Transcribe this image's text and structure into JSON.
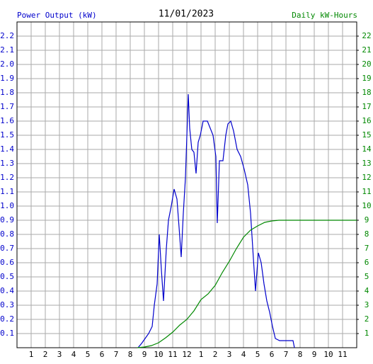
{
  "chart_data": {
    "type": "line",
    "title": "11/01/2023",
    "y_label": "Power Output (kW)",
    "y2_label": "Daily kW-Hours",
    "xlim": [
      0,
      24
    ],
    "xticks": [
      1,
      2,
      3,
      4,
      5,
      6,
      7,
      8,
      9,
      10,
      11,
      12,
      {
        "value": 13,
        "label": "1"
      },
      {
        "value": 14,
        "label": "2"
      },
      {
        "value": 15,
        "label": "3"
      },
      {
        "value": 16,
        "label": "4"
      },
      {
        "value": 17,
        "label": "5"
      },
      {
        "value": 18,
        "label": "6"
      },
      {
        "value": 19,
        "label": "7"
      },
      {
        "value": 20,
        "label": "8"
      },
      {
        "value": 21,
        "label": "9"
      },
      {
        "value": 22,
        "label": "10"
      },
      {
        "value": 23,
        "label": "11"
      }
    ],
    "ylim": [
      0,
      2.3
    ],
    "yticks": [
      0.1,
      0.2,
      0.3,
      0.4,
      0.5,
      0.6,
      0.7,
      0.8,
      0.9,
      {
        "value": 1,
        "label": "1.0"
      },
      1.1,
      1.2,
      1.3,
      1.4,
      1.5,
      1.6,
      1.7,
      1.8,
      1.9,
      {
        "value": 2,
        "label": "2.0"
      },
      2.1,
      2.2
    ],
    "y2lim": [
      0,
      23
    ],
    "y2ticks": [
      1,
      2,
      3,
      4,
      5,
      6,
      7,
      8,
      9,
      10,
      11,
      12,
      13,
      14,
      15,
      16,
      17,
      18,
      19,
      20,
      21,
      22
    ],
    "grid": true,
    "series": [
      {
        "color": "#0000cc",
        "x": [
          8.55,
          8.8,
          9.05,
          9.3,
          9.55,
          9.7,
          9.9,
          10.05,
          10.2,
          10.35,
          10.55,
          10.7,
          10.9,
          11.1,
          11.3,
          11.45,
          11.6,
          11.75,
          11.9,
          12.1,
          12.2,
          12.35,
          12.5,
          12.65,
          12.8,
          12.95,
          13.15,
          13.45,
          13.65,
          13.85,
          14.05,
          14.15,
          14.3,
          14.55,
          14.75,
          14.9,
          15.1,
          15.3,
          15.55,
          15.8,
          16.05,
          16.3,
          16.5,
          16.7,
          16.85,
          17.05,
          17.25,
          17.45,
          17.65,
          17.85,
          18.05,
          18.25,
          18.55,
          19.5,
          19.6
        ],
        "values": [
          0,
          0.03,
          0.065,
          0.1,
          0.15,
          0.3,
          0.45,
          0.8,
          0.55,
          0.33,
          0.7,
          0.9,
          1.0,
          1.12,
          1.05,
          0.85,
          0.64,
          0.95,
          1.2,
          1.79,
          1.55,
          1.4,
          1.38,
          1.23,
          1.45,
          1.5,
          1.6,
          1.6,
          1.55,
          1.5,
          1.35,
          0.88,
          1.32,
          1.32,
          1.5,
          1.58,
          1.6,
          1.53,
          1.4,
          1.35,
          1.26,
          1.15,
          0.95,
          0.63,
          0.4,
          0.67,
          0.6,
          0.45,
          0.33,
          0.25,
          0.15,
          0.065,
          0.05,
          0.05,
          0
        ]
      },
      {
        "color": "#008800",
        "axis": "y2",
        "x": [
          8.5,
          9,
          9.5,
          10,
          10.5,
          11,
          11.5,
          12,
          12.5,
          13,
          13.5,
          14,
          14.5,
          15,
          15.5,
          16,
          16.5,
          17,
          17.5,
          18,
          18.5,
          24
        ],
        "values": [
          0,
          0.05,
          0.15,
          0.35,
          0.7,
          1.1,
          1.6,
          2.0,
          2.6,
          3.4,
          3.8,
          4.4,
          5.3,
          6.1,
          7.0,
          7.8,
          8.3,
          8.6,
          8.85,
          8.95,
          9.0,
          9.0
        ]
      }
    ]
  }
}
